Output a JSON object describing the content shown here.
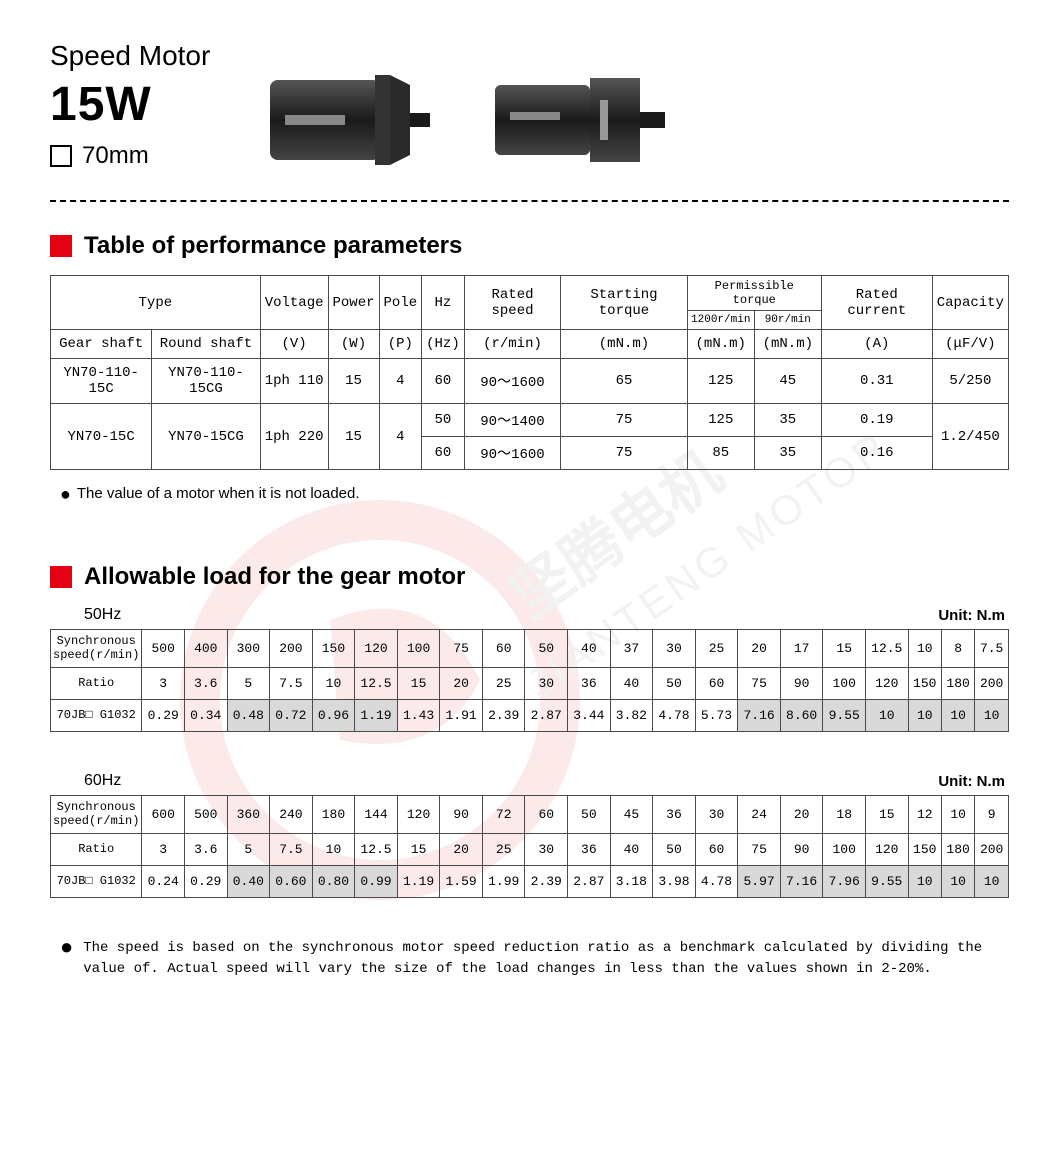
{
  "header": {
    "line1": "Speed Motor",
    "line2": "15W",
    "size": "70mm"
  },
  "section1": {
    "title": "Table of performance parameters",
    "note": "The value of a motor when it is not loaded.",
    "headers": {
      "type": "Type",
      "voltage": "Voltage",
      "power": "Power",
      "pole": "Pole",
      "hz": "Hz",
      "rated_speed": "Rated speed",
      "starting_torque": "Starting torque",
      "perm_torque": "Permissible torque",
      "perm_1200": "1200r/min",
      "perm_90": "90r/min",
      "rated_current": "Rated current",
      "capacity": "Capacity",
      "gear_shaft": "Gear shaft",
      "round_shaft": "Round shaft",
      "u_v": "(V)",
      "u_w": "(W)",
      "u_p": "(P)",
      "u_hz": "(Hz)",
      "u_rmin": "(r/min)",
      "u_mnm1": "(mN.m)",
      "u_mnm2": "(mN.m)",
      "u_mnm3": "(mN.m)",
      "u_a": "(A)",
      "u_ufv": "(μF/V)"
    },
    "rows": [
      {
        "gear": "YN70-110-15C",
        "round": "YN70-110-15CG",
        "voltage": "1ph 110",
        "power": "15",
        "pole": "4",
        "hz": "60",
        "speed": "90～1600",
        "start_t": "65",
        "pt1200": "125",
        "pt90": "45",
        "current": "0.31",
        "cap": "5/250"
      },
      {
        "gear": "YN70-15C",
        "round": "YN70-15CG",
        "voltage": "1ph 220",
        "power": "15",
        "pole": "4",
        "sub": [
          {
            "hz": "50",
            "speed": "90～1400",
            "start_t": "75",
            "pt1200": "125",
            "pt90": "35",
            "current": "0.19"
          },
          {
            "hz": "60",
            "speed": "90～1600",
            "start_t": "75",
            "pt1200": "85",
            "pt90": "35",
            "current": "0.16"
          }
        ],
        "cap": "1.2/450"
      }
    ]
  },
  "section2": {
    "title": "Allowable load  for the gear motor",
    "unit_label": "Unit: N.m",
    "row_labels": {
      "sync": "Synchronous speed(r/min)",
      "ratio": "Ratio",
      "model": "70JB□ G1032"
    },
    "tables": [
      {
        "hz": "50Hz",
        "sync": [
          "500",
          "400",
          "300",
          "200",
          "150",
          "120",
          "100",
          "75",
          "60",
          "50",
          "40",
          "37",
          "30",
          "25",
          "20",
          "17",
          "15",
          "12.5",
          "10",
          "8",
          "7.5"
        ],
        "ratio": [
          "3",
          "3.6",
          "5",
          "7.5",
          "10",
          "12.5",
          "15",
          "20",
          "25",
          "30",
          "36",
          "40",
          "50",
          "60",
          "75",
          "90",
          "100",
          "120",
          "150",
          "180",
          "200"
        ],
        "load": [
          "0.29",
          "0.34",
          "0.48",
          "0.72",
          "0.96",
          "1.19",
          "1.43",
          "1.91",
          "2.39",
          "2.87",
          "3.44",
          "3.82",
          "4.78",
          "5.73",
          "7.16",
          "8.60",
          "9.55",
          "10",
          "10",
          "10",
          "10"
        ],
        "shaded_cols": [
          2,
          3,
          4,
          5,
          14,
          15,
          16,
          17,
          18,
          19,
          20
        ]
      },
      {
        "hz": "60Hz",
        "sync": [
          "600",
          "500",
          "360",
          "240",
          "180",
          "144",
          "120",
          "90",
          "72",
          "60",
          "50",
          "45",
          "36",
          "30",
          "24",
          "20",
          "18",
          "15",
          "12",
          "10",
          "9"
        ],
        "ratio": [
          "3",
          "3.6",
          "5",
          "7.5",
          "10",
          "12.5",
          "15",
          "20",
          "25",
          "30",
          "36",
          "40",
          "50",
          "60",
          "75",
          "90",
          "100",
          "120",
          "150",
          "180",
          "200"
        ],
        "load": [
          "0.24",
          "0.29",
          "0.40",
          "0.60",
          "0.80",
          "0.99",
          "1.19",
          "1.59",
          "1.99",
          "2.39",
          "2.87",
          "3.18",
          "3.98",
          "4.78",
          "5.97",
          "7.16",
          "7.96",
          "9.55",
          "10",
          "10",
          "10"
        ],
        "shaded_cols": [
          2,
          3,
          4,
          5,
          14,
          15,
          16,
          17,
          18,
          19,
          20
        ]
      }
    ],
    "footnote": "The speed is based on the synchronous motor speed reduction ratio as a benchmark calculated by dividing the value of. Actual speed will vary the size of the load changes in less than the values shown in 2-20%."
  },
  "colors": {
    "red": "#e50012",
    "border": "#4a4a4a",
    "shade": "#d9d9d9",
    "text": "#000000",
    "bg": "#ffffff"
  }
}
